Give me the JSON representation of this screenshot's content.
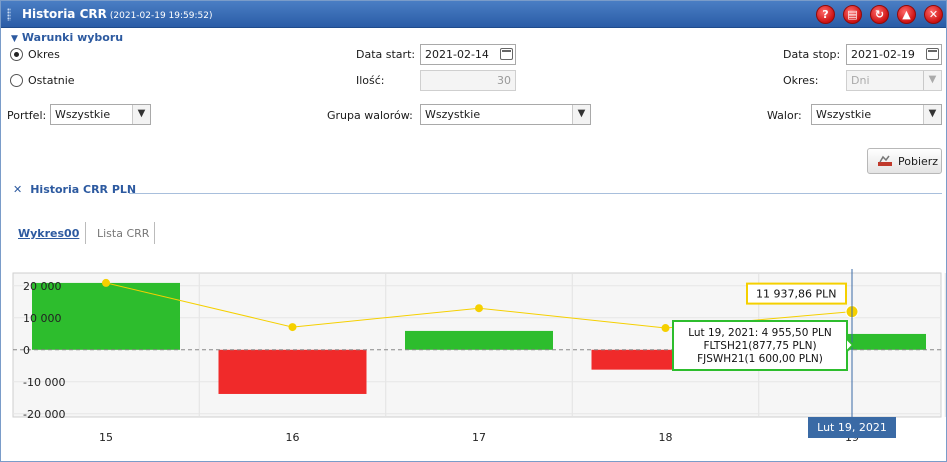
{
  "window": {
    "title": "Historia CRR",
    "timestamp": "(2021-02-19 19:59:52)",
    "buttons": [
      {
        "name": "help",
        "glyph": "?"
      },
      {
        "name": "print",
        "glyph": "▤"
      },
      {
        "name": "refresh",
        "glyph": "↻"
      },
      {
        "name": "collapse",
        "glyph": "▲"
      },
      {
        "name": "close",
        "glyph": "✕"
      }
    ]
  },
  "filters": {
    "section_label": "Warunki wyboru",
    "radio_period": "Okres",
    "radio_last": "Ostatnie",
    "date_start_label": "Data start:",
    "date_start_value": "2021-02-14",
    "count_label": "Ilość:",
    "count_value": "30",
    "date_stop_label": "Data stop:",
    "date_stop_value": "2021-02-19",
    "period_label": "Okres:",
    "period_value": "Dni",
    "portfolio_label": "Portfel:",
    "portfolio_value": "Wszystkie",
    "group_label": "Grupa walorów:",
    "group_value": "Wszystkie",
    "asset_label": "Walor:",
    "asset_value": "Wszystkie",
    "fetch_button": "Pobierz"
  },
  "panel": {
    "title": "Historia CRR PLN",
    "tabs": [
      "Wykres00",
      "Lista CRR"
    ]
  },
  "colors": {
    "positive": "#2dbd2d",
    "negative": "#f02a2a",
    "line": "#f5d000",
    "accent": "#2d5aa0",
    "crosshair_label_bg": "#3a6aa5"
  },
  "chart_data": {
    "type": "bar",
    "categories": [
      "15",
      "16",
      "17",
      "18",
      "19"
    ],
    "bar_values": [
      20900,
      -13800,
      5900,
      -6200,
      4955.5
    ],
    "line_values": [
      20900,
      7100,
      13000,
      6800,
      11937.86
    ],
    "yticks": [
      "20 000",
      "10 000",
      "0",
      "-10 000",
      "-20 000"
    ],
    "ytick_values": [
      20000,
      10000,
      0,
      -10000,
      -20000
    ],
    "ylim": [
      -21000,
      24000
    ],
    "grid": true,
    "crosshair_label": "Lut 19, 2021",
    "tooltip_value": "11 937,86 PLN",
    "tooltip_detail": [
      "Lut 19, 2021: 4 955,50 PLN",
      "FLTSH21(877,75 PLN)",
      "FJSWH21(1 600,00 PLN)"
    ]
  }
}
